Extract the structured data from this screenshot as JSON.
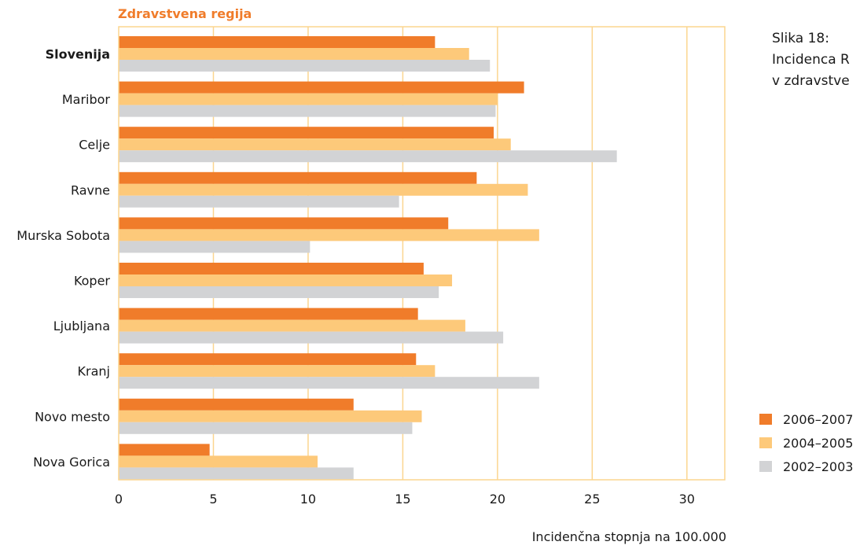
{
  "chart_data": {
    "type": "bar",
    "orientation": "horizontal",
    "title": "Zdravstvena regija",
    "xlabel": "Incidenčna stopnja na 100.000",
    "xlim": [
      0,
      32
    ],
    "xticks": [
      0,
      5,
      10,
      15,
      20,
      25,
      30
    ],
    "grid": true,
    "legend_position": "right",
    "categories": [
      "Slovenija",
      "Maribor",
      "Celje",
      "Ravne",
      "Murska Sobota",
      "Koper",
      "Ljubljana",
      "Kranj",
      "Novo mesto",
      "Nova Gorica"
    ],
    "bold_categories": [
      "Slovenija"
    ],
    "series": [
      {
        "name": "2006–2007",
        "color": "#f07c2a",
        "values": [
          16.7,
          21.4,
          19.8,
          18.9,
          17.4,
          16.1,
          15.8,
          15.7,
          12.4,
          4.8
        ]
      },
      {
        "name": "2004–2005",
        "color": "#fdc97a",
        "values": [
          18.5,
          20.0,
          20.7,
          21.6,
          22.2,
          17.6,
          18.3,
          16.7,
          16.0,
          10.5
        ]
      },
      {
        "name": "2002–2003",
        "color": "#d2d3d5",
        "values": [
          19.6,
          19.9,
          26.3,
          14.8,
          10.1,
          16.9,
          20.3,
          22.2,
          15.5,
          12.4
        ]
      }
    ]
  },
  "caption_lines": [
    "Slika 18:",
    "Incidenca R",
    "v zdravstve"
  ]
}
